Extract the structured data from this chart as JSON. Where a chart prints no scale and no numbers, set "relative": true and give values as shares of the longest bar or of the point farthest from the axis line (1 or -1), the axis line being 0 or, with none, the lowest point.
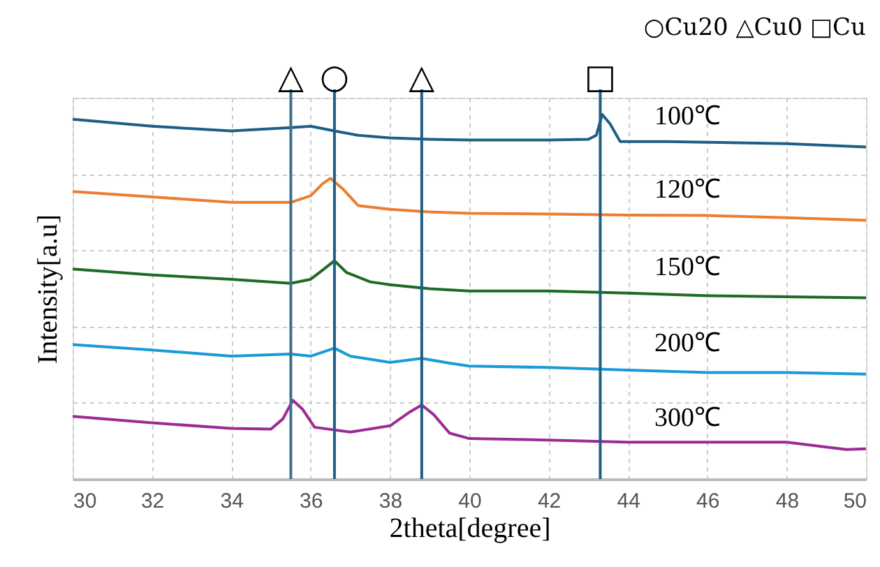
{
  "chart_data": {
    "type": "line",
    "relative": true,
    "xlabel": "2theta[degree]",
    "ylabel": "Intensity[a.u]",
    "xlim": [
      30,
      50
    ],
    "xticks": [
      30,
      32,
      34,
      36,
      38,
      40,
      42,
      44,
      46,
      48,
      50
    ],
    "grid": true,
    "legend": false,
    "marker": "none",
    "line_style": "solid",
    "series": [
      {
        "name": "100℃",
        "color": "#1f5f86",
        "x": [
          30,
          32,
          34,
          35.5,
          36,
          36.6,
          37.2,
          38,
          39,
          40,
          42,
          43,
          43.2,
          43.35,
          43.55,
          43.8,
          45,
          46,
          48,
          50
        ],
        "values": [
          0.987,
          0.968,
          0.955,
          0.964,
          0.968,
          0.955,
          0.943,
          0.936,
          0.932,
          0.93,
          0.93,
          0.932,
          0.943,
          1.0,
          0.974,
          0.926,
          0.926,
          0.924,
          0.92,
          0.911
        ]
      },
      {
        "name": "120℃",
        "color": "#ed7d31",
        "x": [
          30,
          32,
          34,
          35.5,
          36,
          36.3,
          36.5,
          36.8,
          37.2,
          38,
          39,
          40,
          42,
          44,
          46,
          48,
          50
        ],
        "values": [
          0.789,
          0.774,
          0.759,
          0.759,
          0.777,
          0.81,
          0.825,
          0.797,
          0.75,
          0.74,
          0.733,
          0.729,
          0.727,
          0.724,
          0.723,
          0.717,
          0.71
        ]
      },
      {
        "name": "150℃",
        "color": "#1e6b25",
        "x": [
          30,
          32,
          34,
          35.5,
          36,
          36.3,
          36.6,
          36.9,
          37.5,
          38,
          39,
          40,
          42,
          43,
          44,
          46,
          48,
          50
        ],
        "values": [
          0.576,
          0.56,
          0.548,
          0.537,
          0.548,
          0.573,
          0.599,
          0.567,
          0.541,
          0.533,
          0.522,
          0.516,
          0.516,
          0.513,
          0.51,
          0.503,
          0.5,
          0.497
        ]
      },
      {
        "name": "200℃",
        "color": "#1a9ad6",
        "x": [
          30,
          32,
          34,
          35.5,
          36,
          36.6,
          37,
          38,
          38.8,
          39.5,
          40,
          42,
          44,
          46,
          48,
          50
        ],
        "values": [
          0.369,
          0.354,
          0.337,
          0.343,
          0.337,
          0.359,
          0.337,
          0.32,
          0.331,
          0.318,
          0.31,
          0.306,
          0.299,
          0.292,
          0.292,
          0.288
        ]
      },
      {
        "name": "300℃",
        "color": "#9b2c94",
        "x": [
          30,
          32,
          34,
          35,
          35.3,
          35.55,
          35.8,
          36.1,
          37,
          38,
          38.5,
          38.8,
          39.1,
          39.5,
          40,
          42,
          44,
          46,
          48,
          49.5,
          50
        ],
        "values": [
          0.172,
          0.154,
          0.139,
          0.137,
          0.165,
          0.216,
          0.191,
          0.142,
          0.129,
          0.146,
          0.184,
          0.203,
          0.177,
          0.126,
          0.111,
          0.107,
          0.101,
          0.101,
          0.101,
          0.081,
          0.083
        ]
      }
    ],
    "ref_lines": [
      {
        "axis": "x",
        "value": 35.5,
        "label": "△",
        "color": "#3a7390"
      },
      {
        "axis": "x",
        "value": 36.6,
        "label": "○",
        "color": "#1f5f86"
      },
      {
        "axis": "x",
        "value": 38.8,
        "label": "△",
        "color": "#1f5f86"
      },
      {
        "axis": "x",
        "value": 43.3,
        "label": "□",
        "color": "#1f5f86"
      }
    ],
    "annotations": [
      "○Cu20 △Cu0 □Cu"
    ]
  }
}
